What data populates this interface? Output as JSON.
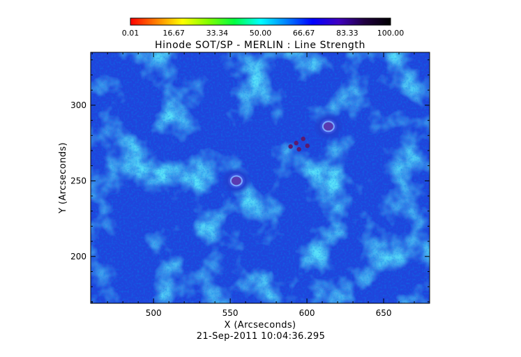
{
  "chart_data": {
    "type": "heatmap",
    "title": "Hinode SOT/SP - MERLIN : Line Strength",
    "xlabel": "X (Arcseconds)",
    "ylabel": "Y (Arcseconds)",
    "footer": "21-Sep-2011 10:04:36.295",
    "xlim": [
      459,
      680
    ],
    "ylim": [
      169,
      335
    ],
    "x_ticks": [
      500,
      550,
      600,
      650
    ],
    "y_ticks": [
      200,
      250,
      300
    ],
    "x_tick_labels": [
      "500",
      "550",
      "600",
      "650"
    ],
    "y_tick_labels": [
      "200",
      "250",
      "300"
    ],
    "colorbar": {
      "range": [
        0.01,
        100.0
      ],
      "tick_labels": [
        "0.01",
        "16.67",
        "33.34",
        "50.00",
        "66.67",
        "83.33",
        "100.00"
      ],
      "colors": [
        "#ff0000",
        "#ff8000",
        "#ffff00",
        "#80ff00",
        "#00ff40",
        "#00ffff",
        "#0080ff",
        "#0000ff",
        "#4000c0",
        "#200040",
        "#000000"
      ]
    },
    "features": [
      {
        "type": "sunspot",
        "x": 554,
        "y": 250
      },
      {
        "type": "sunspot",
        "x": 614,
        "y": 286
      },
      {
        "type": "pore-cluster",
        "x": 593,
        "y": 275
      }
    ],
    "grid": false
  }
}
